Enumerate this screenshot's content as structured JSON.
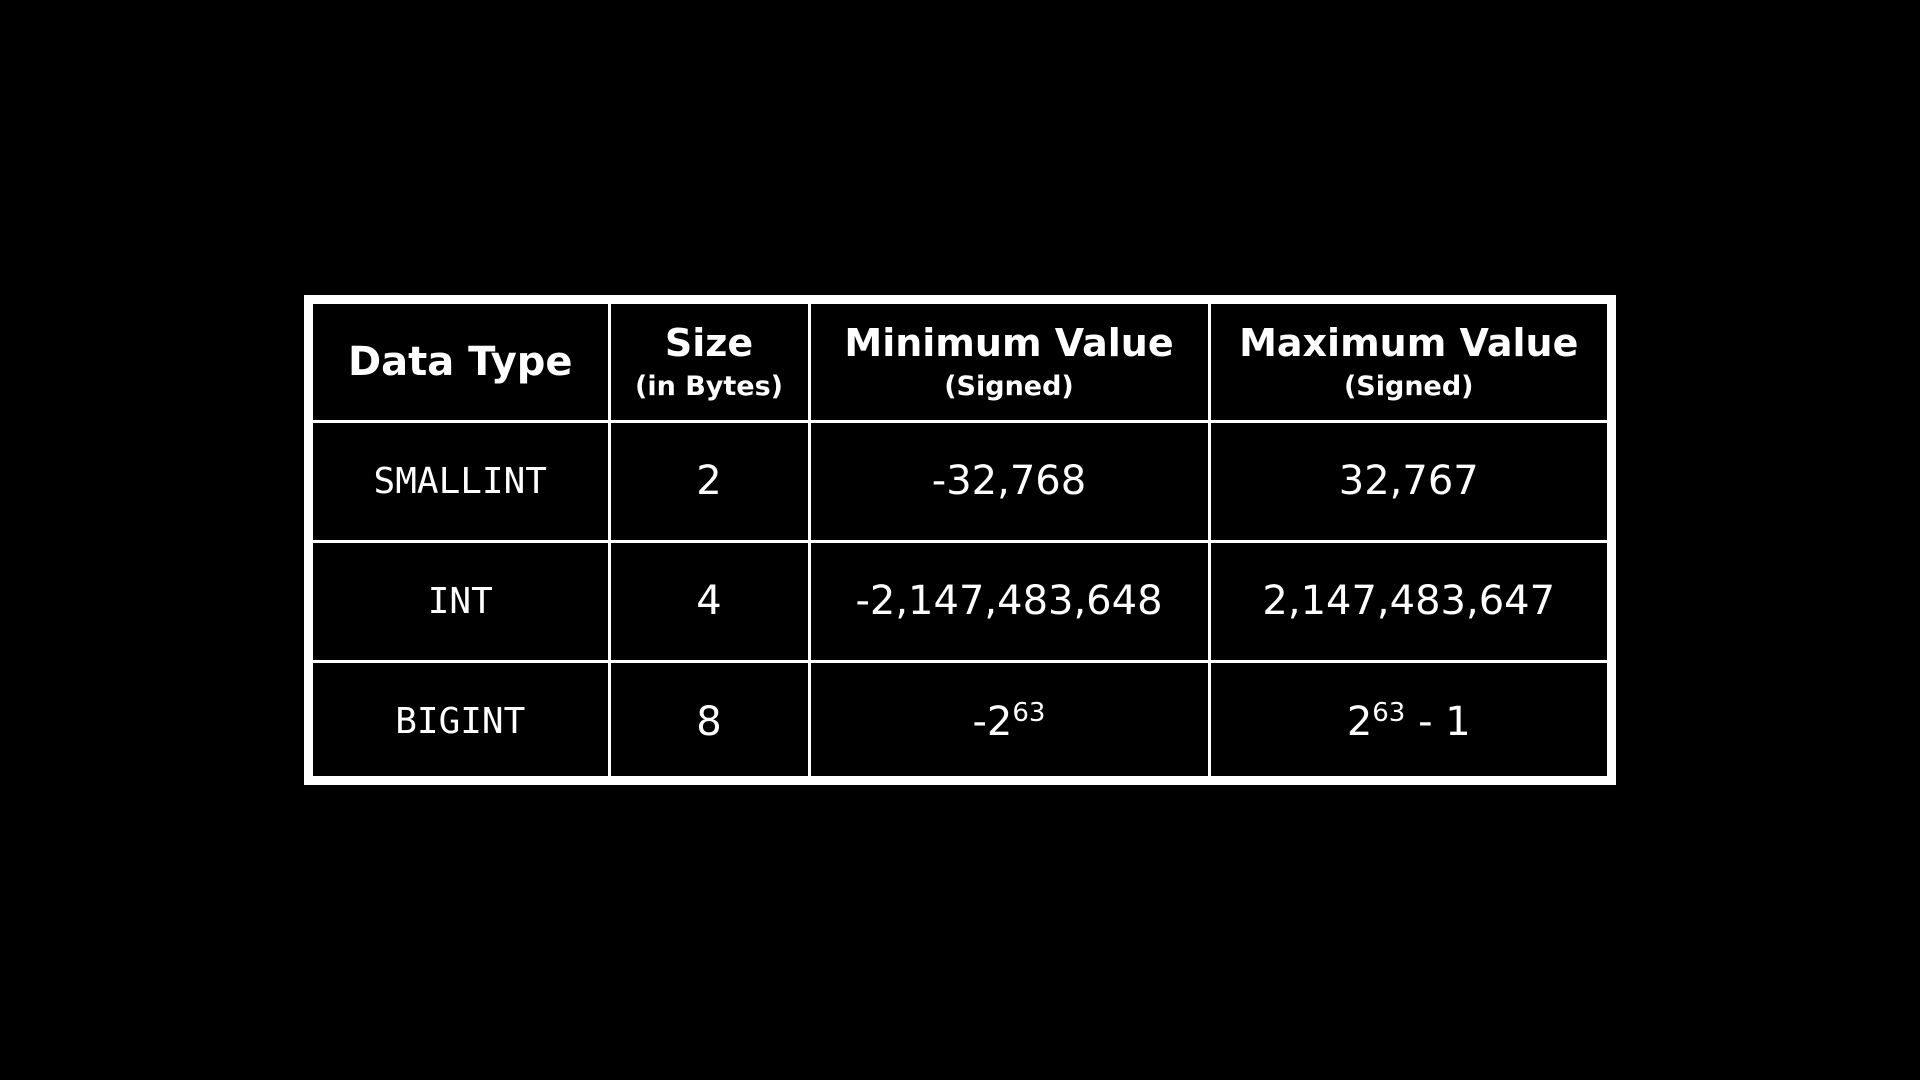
{
  "table": {
    "header": {
      "data_type": "Data Type",
      "size": {
        "main": "Size",
        "sub": "(in Bytes)"
      },
      "minimum": {
        "main": "Minimum Value",
        "sub": "(Signed)"
      },
      "maximum": {
        "main": "Maximum Value",
        "sub": "(Signed)"
      }
    },
    "rows": [
      {
        "type": "SMALLINT",
        "size": "2",
        "min": {
          "base": "-32,768",
          "exponent": "",
          "suffix": ""
        },
        "max": {
          "base": "32,767",
          "exponent": "",
          "suffix": ""
        }
      },
      {
        "type": "INT",
        "size": "4",
        "min": {
          "base": "-2,147,483,648",
          "exponent": "",
          "suffix": ""
        },
        "max": {
          "base": "2,147,483,647",
          "exponent": "",
          "suffix": ""
        }
      },
      {
        "type": "BIGINT",
        "size": "8",
        "min": {
          "base": "-2",
          "exponent": "63",
          "suffix": ""
        },
        "max": {
          "base": "2",
          "exponent": "63",
          "suffix": " - 1"
        }
      }
    ]
  },
  "colors": {
    "background": "#000000",
    "foreground": "#ffffff"
  }
}
